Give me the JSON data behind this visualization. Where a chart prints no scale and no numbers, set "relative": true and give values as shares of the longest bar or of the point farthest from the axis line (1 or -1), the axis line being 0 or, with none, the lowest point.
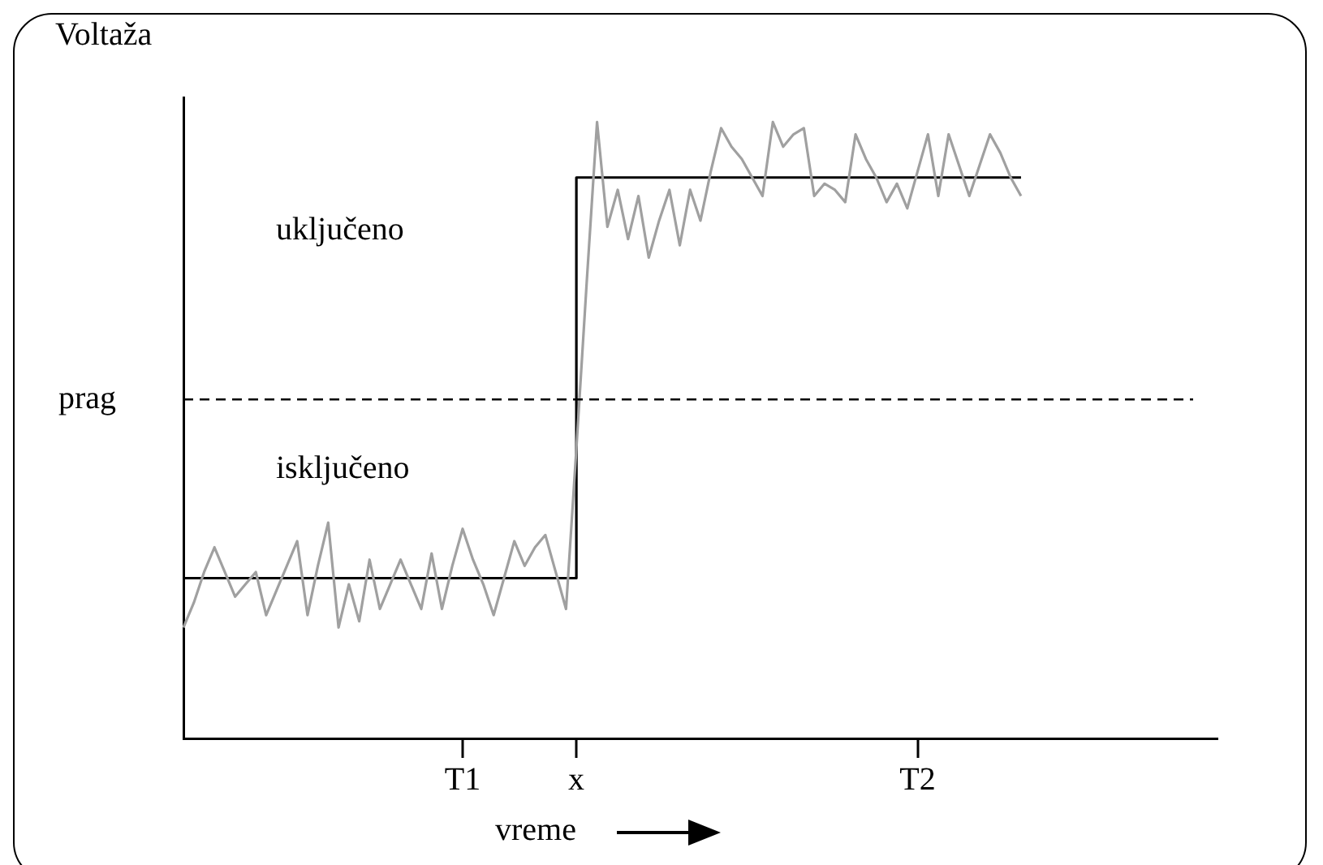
{
  "chart_data": {
    "type": "line",
    "relative": true,
    "ylabel": "Voltaža",
    "xlabel": "vreme",
    "categories": [
      null,
      null,
      null,
      null,
      null,
      null,
      null,
      null,
      null,
      null,
      null,
      null,
      null,
      null,
      null,
      null,
      null,
      null,
      null,
      null,
      null,
      null,
      null,
      null,
      null,
      null,
      null,
      "T1",
      null,
      null,
      null,
      null,
      null,
      null,
      null,
      null,
      null,
      null,
      "x",
      null,
      null,
      null,
      null,
      null,
      null,
      null,
      null,
      null,
      null,
      null,
      null,
      null,
      null,
      null,
      null,
      null,
      null,
      null,
      null,
      null,
      null,
      null,
      null,
      null,
      null,
      null,
      null,
      null,
      null,
      null,
      null,
      "T2",
      null,
      null,
      null,
      null,
      null,
      null,
      null,
      null,
      null,
      null,
      null,
      null,
      null,
      null,
      null,
      null,
      null,
      null,
      null,
      null,
      null,
      null,
      null,
      null,
      null,
      null,
      null,
      null,
      null
    ],
    "series": [
      {
        "color": "#a0a0a0",
        "values": [
          0.18,
          0.22,
          0.27,
          0.31,
          0.27,
          0.23,
          0.25,
          0.27,
          0.2,
          0.24,
          0.28,
          0.32,
          0.2,
          0.28,
          0.35,
          0.18,
          0.25,
          0.19,
          0.29,
          0.21,
          0.25,
          0.29,
          0.25,
          0.21,
          0.3,
          0.21,
          0.28,
          0.34,
          0.29,
          0.25,
          0.2,
          0.26,
          0.32,
          0.28,
          0.31,
          0.33,
          0.27,
          0.21,
          0.47,
          0.74,
          1,
          0.83,
          0.89,
          0.81,
          0.88,
          0.78,
          0.84,
          0.89,
          0.8,
          0.89,
          0.84,
          0.92,
          0.99,
          0.96,
          0.94,
          0.91,
          0.88,
          1,
          0.96,
          0.98,
          0.99,
          0.88,
          0.9,
          0.89,
          0.87,
          0.98,
          0.94,
          0.91,
          0.87,
          0.9,
          0.86,
          0.92,
          0.98,
          0.88,
          0.98,
          0.93,
          0.88,
          0.93,
          0.98,
          0.95,
          0.91,
          0.88,
          null,
          null,
          null,
          null,
          null,
          null,
          null,
          null,
          null,
          null,
          null,
          null,
          null,
          null,
          null,
          null,
          null,
          null,
          null
        ]
      },
      {
        "type": "step",
        "color": "#000000",
        "values": [
          0.26,
          0.26,
          0.26,
          0.26,
          0.26,
          0.26,
          0.26,
          0.26,
          0.26,
          0.26,
          0.26,
          0.26,
          0.26,
          0.26,
          0.26,
          0.26,
          0.26,
          0.26,
          0.26,
          0.26,
          0.26,
          0.26,
          0.26,
          0.26,
          0.26,
          0.26,
          0.26,
          0.26,
          0.26,
          0.26,
          0.26,
          0.26,
          0.26,
          0.26,
          0.26,
          0.26,
          0.26,
          0.26,
          0.91,
          0.91,
          0.91,
          0.91,
          0.91,
          0.91,
          0.91,
          0.91,
          0.91,
          0.91,
          0.91,
          0.91,
          0.91,
          0.91,
          0.91,
          0.91,
          0.91,
          0.91,
          0.91,
          0.91,
          0.91,
          0.91,
          0.91,
          0.91,
          0.91,
          0.91,
          0.91,
          0.91,
          0.91,
          0.91,
          0.91,
          0.91,
          0.91,
          0.91,
          0.91,
          0.91,
          0.91,
          0.91,
          0.91,
          0.91,
          0.91,
          0.91,
          0.91,
          0.91,
          null,
          null,
          null,
          null,
          null,
          null,
          null,
          null,
          null,
          null,
          null,
          null,
          null,
          null,
          null,
          null,
          null,
          null,
          null
        ]
      }
    ],
    "ref_lines": [
      {
        "axis": "y",
        "value": 0.55,
        "label": "prag",
        "line_style": "dashed",
        "color": "#000000"
      }
    ],
    "annotations": [
      "uključeno",
      "isključeno"
    ],
    "grid": false,
    "legend": false,
    "marker": "none",
    "line_style": "solid"
  }
}
